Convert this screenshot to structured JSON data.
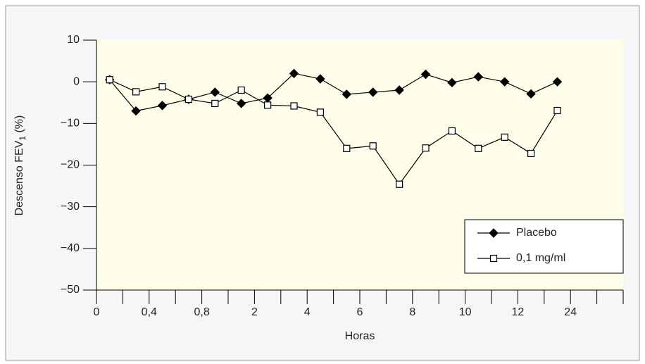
{
  "chart_data": {
    "type": "line",
    "y_label": {
      "main": "Descenso FEV",
      "subscript": "1",
      "suffix": " (%)"
    },
    "x_label": "Horas",
    "categories": [
      "0",
      null,
      "0,4",
      null,
      "0,8",
      null,
      "2",
      null,
      "4",
      null,
      "6",
      null,
      "8",
      null,
      "10",
      null,
      "12",
      null,
      "24",
      null
    ],
    "series": [
      {
        "name": "Placebo",
        "color": "#000000",
        "marker": "diamond",
        "values": [
          0.5,
          -7,
          -5.7,
          -4.2,
          -2.5,
          -5.2,
          -3.9,
          2,
          0.7,
          -3,
          -2.5,
          -2,
          1.8,
          -0.2,
          1.2,
          0,
          -2.9,
          0,
          null,
          null
        ]
      },
      {
        "name": "0,1 mg/ml",
        "color": "#000000",
        "marker": "square",
        "values": [
          0.5,
          -2.4,
          -1.2,
          -4.2,
          -5.2,
          -2,
          -5.6,
          -5.8,
          -7.3,
          -16,
          -15.4,
          -24.6,
          -15.9,
          -11.8,
          -16,
          -13.3,
          -17.2,
          -6.9,
          null,
          null
        ]
      }
    ],
    "ylim": [
      -50,
      10
    ],
    "yticks": [
      {
        "value": -50,
        "label": "−50"
      },
      {
        "value": -40,
        "label": "−40"
      },
      {
        "value": -30,
        "label": "−30"
      },
      {
        "value": -20,
        "label": "−20"
      },
      {
        "value": -10,
        "label": "−10"
      },
      0,
      10
    ],
    "legend": "lower right",
    "plot_background": "#fdfde9"
  }
}
